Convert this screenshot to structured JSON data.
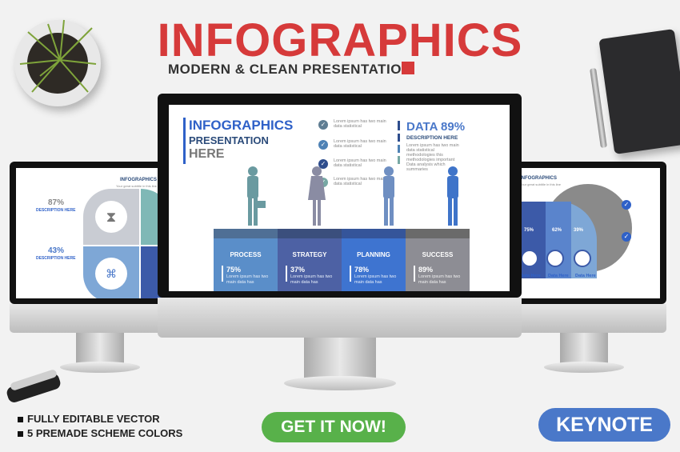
{
  "header": {
    "title": "INFOGRAPHICS",
    "subtitle": "MODERN & CLEAN PRESENTATION"
  },
  "center_slide": {
    "title": "INFOGRAPHICS",
    "subtitle1": "PRESENTATION",
    "subtitle2": "HERE",
    "checks": [
      {
        "l1": "Lorem ipsum has two main",
        "l2": "data statistical"
      },
      {
        "l1": "Lorem ipsum has two main",
        "l2": "data statistical"
      },
      {
        "l1": "Lorem ipsum has two main",
        "l2": "data statistical"
      },
      {
        "l1": "Lorem ipsum has two main",
        "l2": "data statistical"
      }
    ],
    "data_title": "DATA 89%",
    "data_desc": "DESCRIPTION HERE",
    "data_lines": [
      "Lorem ipsum has two main",
      "data statistical",
      "methodologies this",
      "methodologies important",
      "Data analysis which",
      "summaries"
    ],
    "steps": [
      {
        "label": "PROCESS",
        "pct": "75%",
        "desc": "Lorem ipsum has two main data has"
      },
      {
        "label": "STRATEGY",
        "pct": "37%",
        "desc": "Lorem ipsum has two main data has"
      },
      {
        "label": "PLANNING",
        "pct": "78%",
        "desc": "Lorem ipsum has two main data has"
      },
      {
        "label": "SUCCESS",
        "pct": "89%",
        "desc": "Lorem ipsum has two main data has"
      }
    ]
  },
  "left_slide": {
    "title": "INFOGRAPHICS",
    "caption": "Your great subtitle in this line",
    "stats": [
      {
        "pct": "87%",
        "desc": "DESCRIPTION HERE"
      },
      {
        "pct": "43%",
        "desc": "DESCRIPTION HERE"
      }
    ]
  },
  "right_slide": {
    "title": "INFOGRAPHICS",
    "caption": "Your great subtitle in this line",
    "pcts": [
      "75%",
      "62%",
      "39%"
    ],
    "labels": [
      "Data Here",
      "Data Here",
      "Data Here"
    ]
  },
  "features": [
    "FULLY EDITABLE VECTOR",
    "5 PREMADE SCHEME COLORS"
  ],
  "cta": "GET IT NOW!",
  "badge": "KEYNOTE",
  "colors": {
    "accent": "#d63a3a",
    "blue": "#2f61c8",
    "green": "#58b14a",
    "keynote": "#4a78c9"
  }
}
